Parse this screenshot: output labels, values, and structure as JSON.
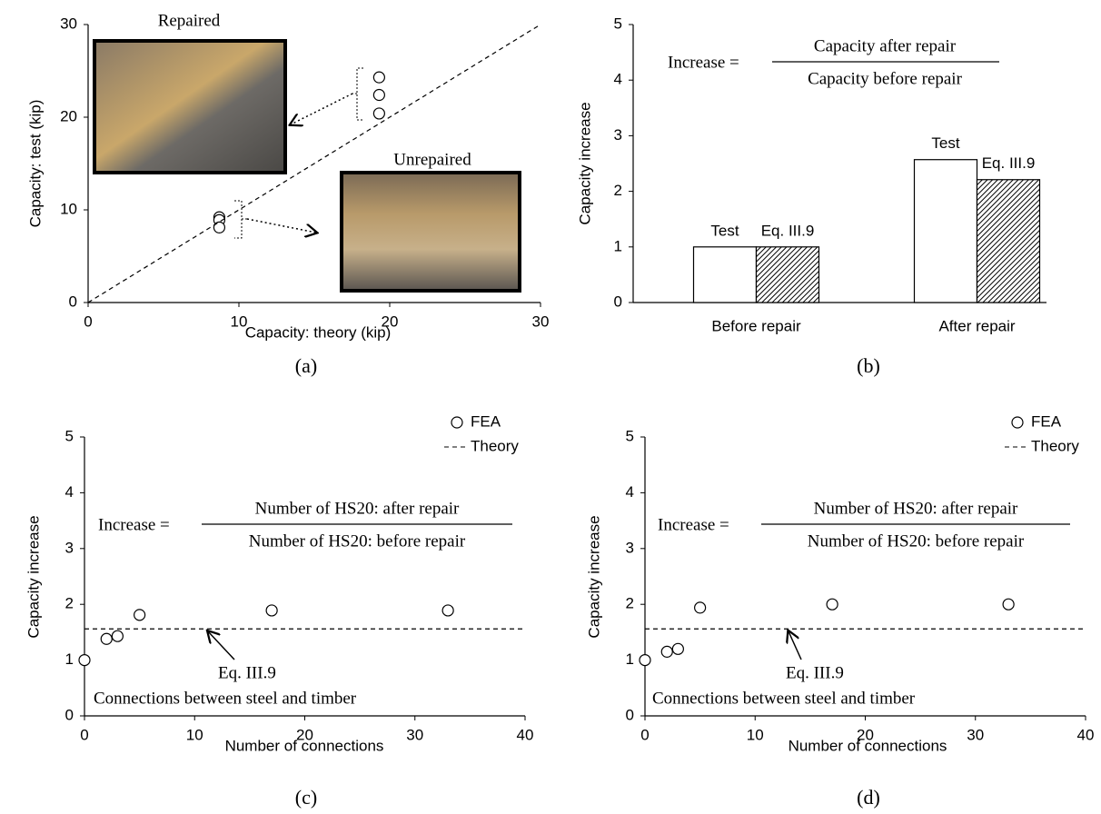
{
  "chart_data": [
    {
      "type": "scatter",
      "caption": "(a)",
      "xlabel": "Capacity: theory (kip)",
      "ylabel": "Capacity: test (kip)",
      "xlim": [
        0,
        30
      ],
      "ylim": [
        0,
        30
      ],
      "xticks": [
        0,
        10,
        20,
        30
      ],
      "yticks": [
        0,
        10,
        20,
        30
      ],
      "legend": false,
      "annotations": [
        "Repaired",
        "Unrepaired"
      ],
      "series": [
        {
          "color": "#000000",
          "x": [
            19.3,
            19.3,
            19.3,
            8.7,
            8.7,
            8.7
          ],
          "values": [
            24.3,
            22.4,
            20.4,
            9.2,
            8.9,
            8.1
          ]
        },
        {
          "color": "#000000",
          "style": "dashed",
          "x": [
            0,
            30
          ],
          "values": [
            0,
            30
          ]
        }
      ]
    },
    {
      "type": "bar",
      "caption": "(b)",
      "ylabel": "Capacity increase",
      "formula": {
        "lhs": "Increase =",
        "numerator": "Capacity after repair",
        "denominator": "Capacity before repair"
      },
      "categories": [
        "Before repair",
        "After repair"
      ],
      "ylim": [
        0,
        5
      ],
      "yticks": [
        0,
        1,
        2,
        3,
        4,
        5
      ],
      "series": [
        {
          "name": "Test",
          "color": "#ffffff",
          "values": [
            1,
            2.57
          ]
        },
        {
          "name": "Eq. III.9",
          "color": "#000000",
          "pattern": "hatch",
          "values": [
            1,
            2.21
          ]
        }
      ]
    },
    {
      "type": "scatter",
      "caption": "(c)",
      "xlabel": "Number of connections",
      "ylabel": "Capacity increase",
      "formula": {
        "lhs": "Increase =",
        "numerator": "Number of HS20: after repair",
        "denominator": "Number of HS20: before repair"
      },
      "annotations": [
        "Eq. III.9",
        "Connections between steel and timber"
      ],
      "xlim": [
        0,
        40
      ],
      "ylim": [
        0,
        5
      ],
      "xticks": [
        0,
        10,
        20,
        30,
        40
      ],
      "yticks": [
        0,
        1,
        2,
        3,
        4,
        5
      ],
      "legend": "upper right",
      "series": [
        {
          "name": "FEA",
          "color": "#000000",
          "x": [
            0,
            2,
            3,
            5,
            17,
            33
          ],
          "values": [
            1.0,
            1.38,
            1.43,
            1.81,
            1.89,
            1.89
          ]
        },
        {
          "name": "Theory",
          "color": "#000000",
          "style": "dashed",
          "x": [
            0,
            40
          ],
          "values": [
            1.56,
            1.56
          ]
        }
      ]
    },
    {
      "type": "scatter",
      "caption": "(d)",
      "xlabel": "Number of connections",
      "ylabel": "Capacity increase",
      "formula": {
        "lhs": "Increase =",
        "numerator": "Number of HS20: after repair",
        "denominator": "Number of HS20: before repair"
      },
      "annotations": [
        "Eq. III.9",
        "Connections between steel and timber"
      ],
      "xlim": [
        0,
        40
      ],
      "ylim": [
        0,
        5
      ],
      "xticks": [
        0,
        10,
        20,
        30,
        40
      ],
      "yticks": [
        0,
        1,
        2,
        3,
        4,
        5
      ],
      "legend": "upper right",
      "series": [
        {
          "name": "FEA",
          "color": "#000000",
          "x": [
            0,
            2,
            3,
            5,
            17,
            33
          ],
          "values": [
            1.0,
            1.15,
            1.2,
            1.94,
            2.0,
            2.0
          ]
        },
        {
          "name": "Theory",
          "color": "#000000",
          "style": "dashed",
          "x": [
            0,
            40
          ],
          "values": [
            1.56,
            1.56
          ]
        }
      ]
    }
  ]
}
